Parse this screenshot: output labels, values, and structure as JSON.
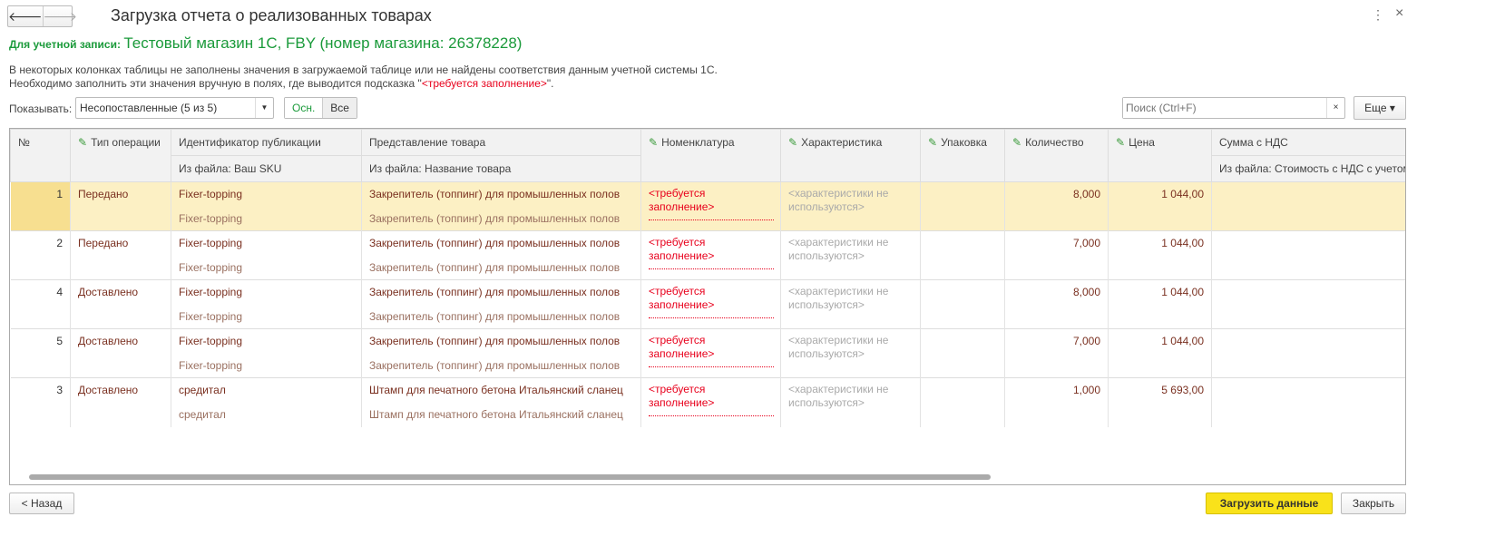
{
  "window": {
    "title": "Загрузка отчета о реализованных товарах",
    "menu_icon": "more-vertical-icon",
    "close_icon": "close-icon"
  },
  "account": {
    "label": "Для учетной записи:",
    "value": "Тестовый магазин 1С, FBY (номер магазина: 26378228)"
  },
  "info": {
    "line1": "В некоторых колонках таблицы не заполнены значения в загружаемой таблице или не найдены соответствия данным учетной системы 1С.",
    "line2_pre": "Необходимо заполнить эти значения вручную в полях, где выводится подсказка \"",
    "line2_hint": "<требуется заполнение>",
    "line2_post": "\"."
  },
  "filter": {
    "label": "Показывать:",
    "value": "Несопоставленные (5 из 5)",
    "seg_main": "Осн.",
    "seg_all": "Все"
  },
  "search": {
    "placeholder": "Поиск (Ctrl+F)",
    "clear": "×"
  },
  "more_label": "Еще ▾",
  "columns": {
    "num": "№",
    "op": "Тип операции",
    "pub": "Идентификатор публикации",
    "pub_sub": "Из файла: Ваш SKU",
    "pres": "Представление товара",
    "pres_sub": "Из файла: Название товара",
    "nom": "Номенклатура",
    "char": "Характеристика",
    "pack": "Упаковка",
    "qty": "Количество",
    "price": "Цена",
    "sum": "Сумма с НДС",
    "sum_sub": "Из файла: Стоимость с НДС с учетом"
  },
  "rows": [
    {
      "num": "1",
      "op": "Передано",
      "pub": "Fixer-topping",
      "pub_file": "Fixer-topping",
      "pres": "Закрепитель (топпинг) для промышленных полов",
      "pres_file": "Закрепитель (топпинг) для промышленных полов",
      "nom": "<требуется заполнение>",
      "char": "<характеристики не используются>",
      "qty": "8,000",
      "price": "1 044,00"
    },
    {
      "num": "2",
      "op": "Передано",
      "pub": "Fixer-topping",
      "pub_file": "Fixer-topping",
      "pres": "Закрепитель (топпинг) для промышленных полов",
      "pres_file": "Закрепитель (топпинг) для промышленных полов",
      "nom": "<требуется заполнение>",
      "char": "<характеристики не используются>",
      "qty": "7,000",
      "price": "1 044,00"
    },
    {
      "num": "4",
      "op": "Доставлено",
      "pub": "Fixer-topping",
      "pub_file": "Fixer-topping",
      "pres": "Закрепитель (топпинг) для промышленных полов",
      "pres_file": "Закрепитель (топпинг) для промышленных полов",
      "nom": "<требуется заполнение>",
      "char": "<характеристики не используются>",
      "qty": "8,000",
      "price": "1 044,00"
    },
    {
      "num": "5",
      "op": "Доставлено",
      "pub": "Fixer-topping",
      "pub_file": "Fixer-topping",
      "pres": "Закрепитель (топпинг) для промышленных полов",
      "pres_file": "Закрепитель (топпинг) для промышленных полов",
      "nom": "<требуется заполнение>",
      "char": "<характеристики не используются>",
      "qty": "7,000",
      "price": "1 044,00"
    },
    {
      "num": "3",
      "op": "Доставлено",
      "pub": "средитал",
      "pub_file": "средитал",
      "pres": "Штамп для печатного бетона Итальянский сланец",
      "pres_file": "Штамп для печатного бетона Итальянский сланец",
      "nom": "<требуется заполнение>",
      "char": "<характеристики не используются>",
      "qty": "1,000",
      "price": "5 693,00"
    }
  ],
  "buttons": {
    "back": "< Назад",
    "load": "Загрузить данные",
    "close": "Закрыть"
  },
  "colors": {
    "accent_green": "#1a9a3a",
    "required_red": "#e8001c",
    "selected_row": "#fcf0c4",
    "primary_button": "#f9e21a"
  }
}
